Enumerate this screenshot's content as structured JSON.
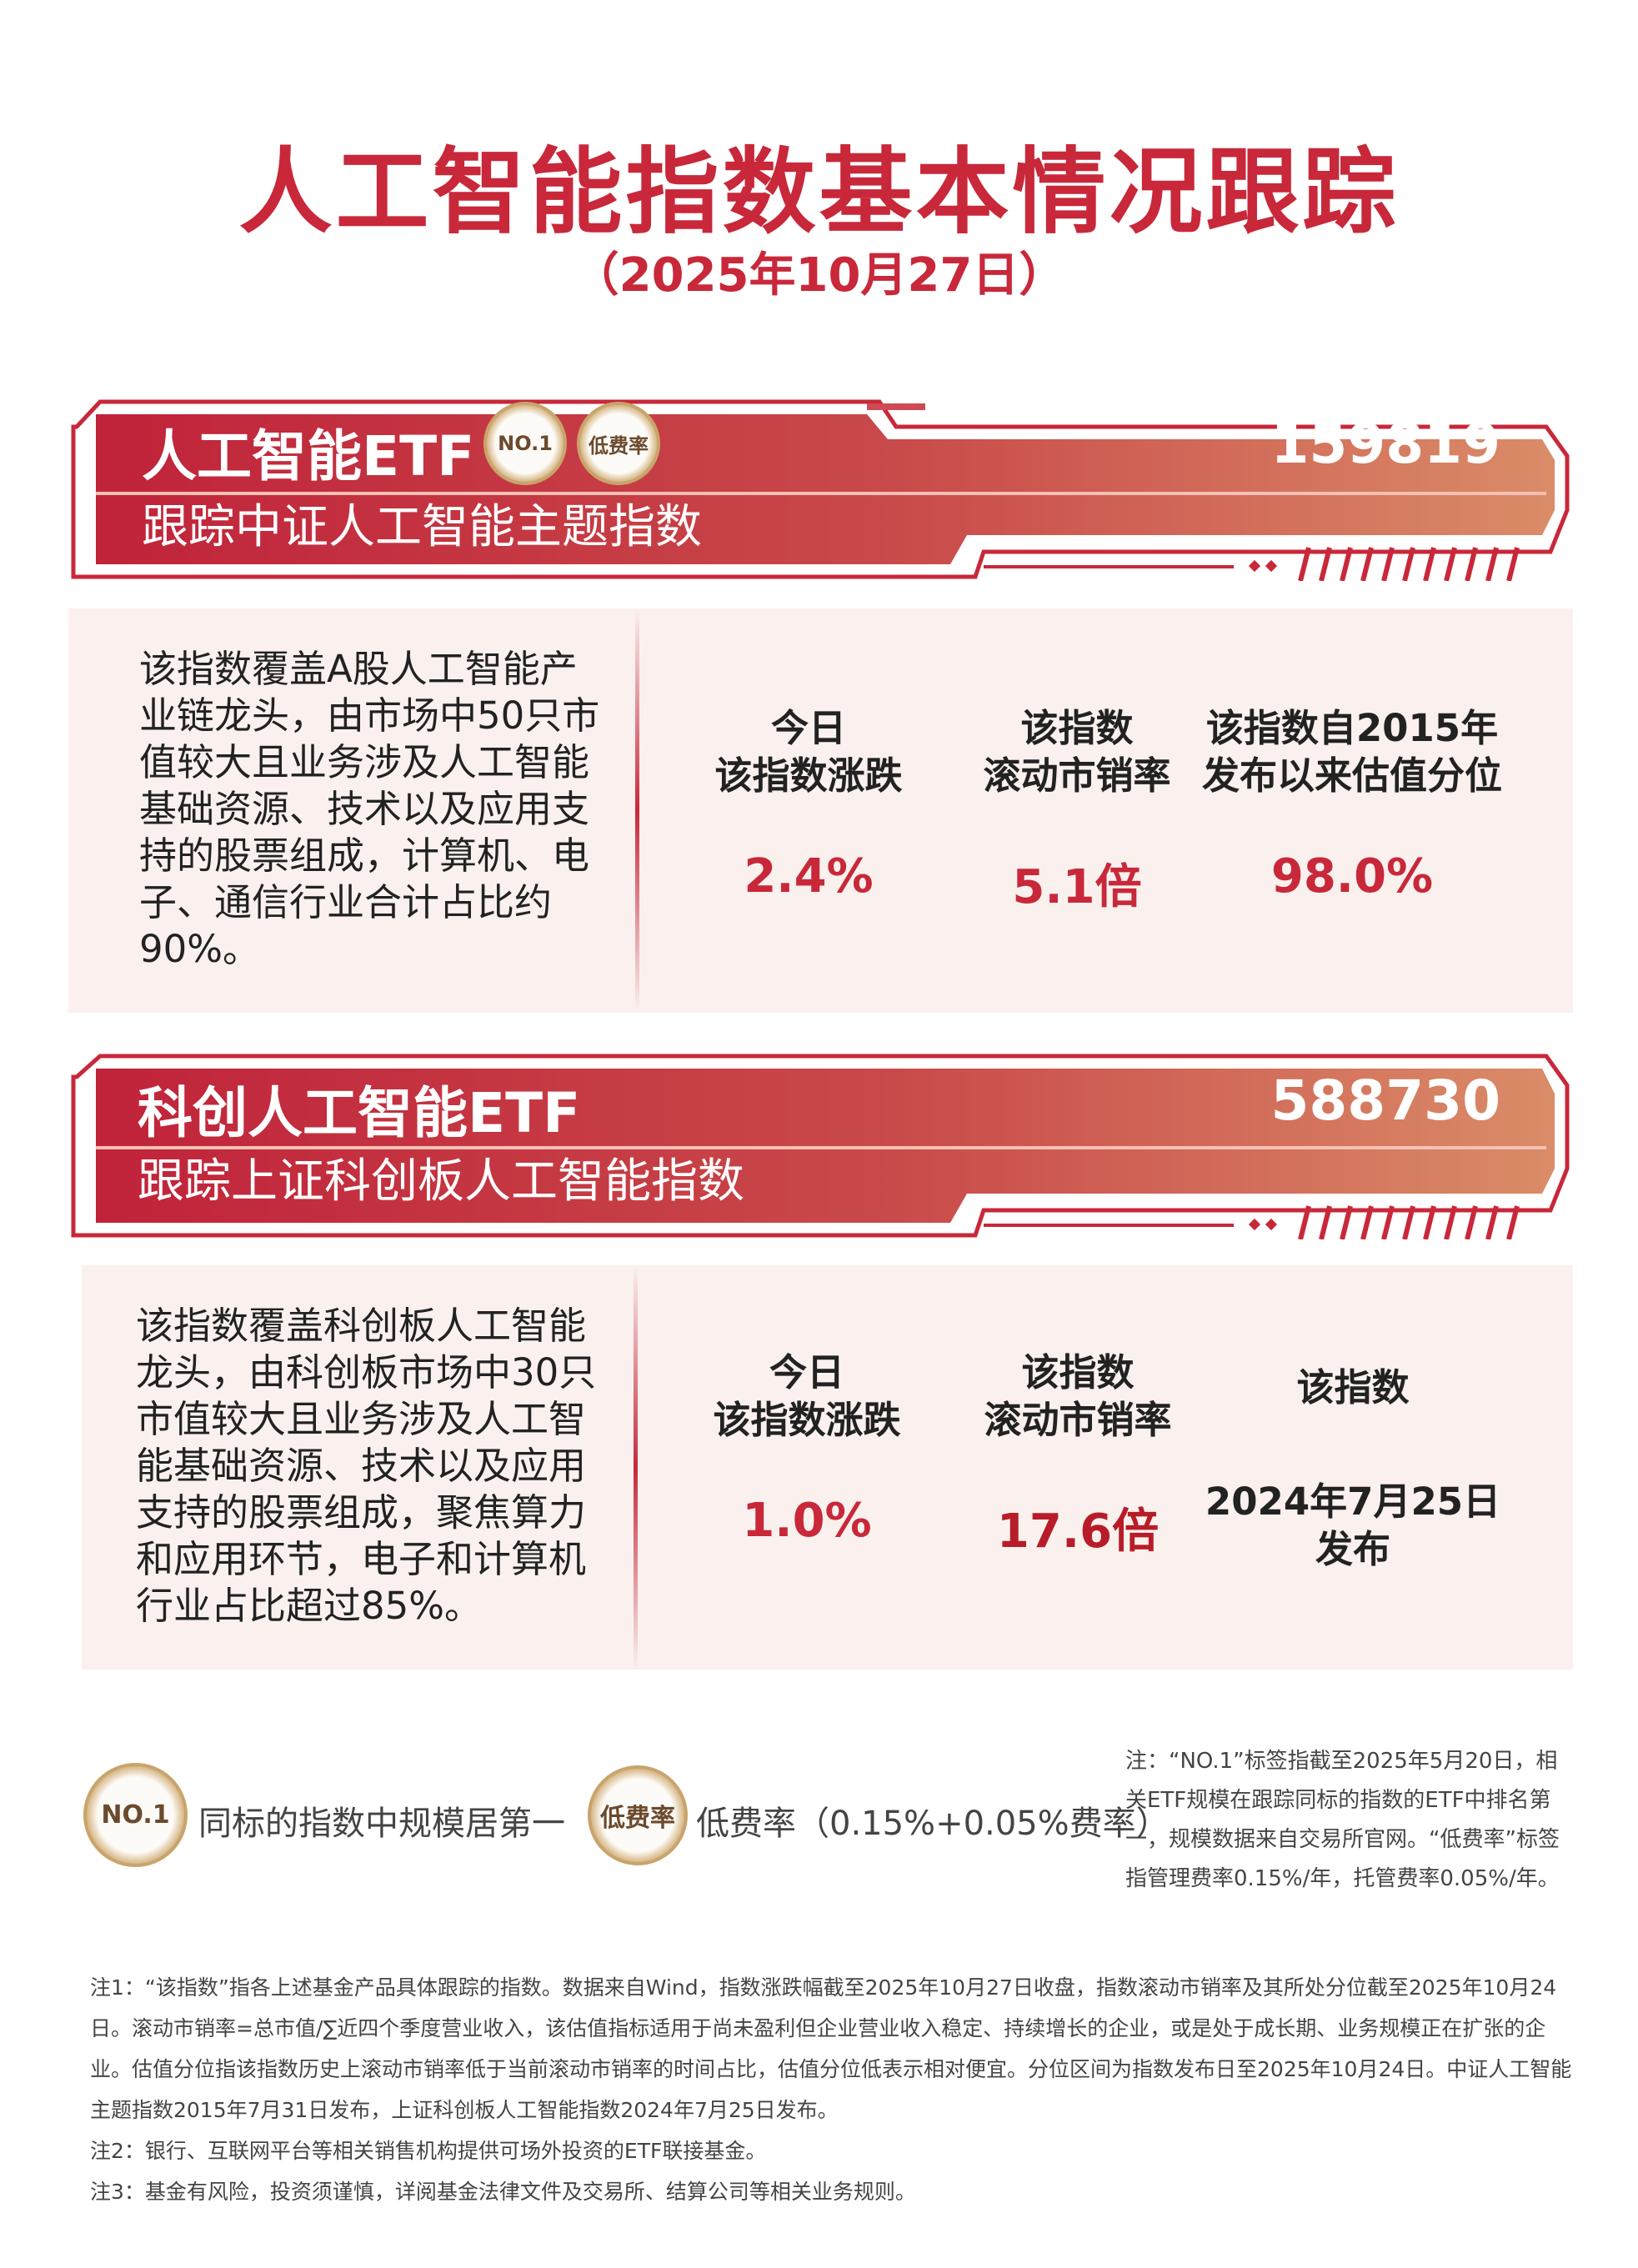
{
  "title": "人工智能指数基本情况跟踪",
  "subtitle": "（2025年10月27日）",
  "colors": {
    "brand_red": "#c8283a",
    "banner_end": "#d98b68",
    "card_bg": "#faf1ee"
  },
  "funds": [
    {
      "name": "人工智能ETF",
      "code": "159819",
      "tracking": "跟踪中证人工智能主题指数",
      "badges": [
        "NO.1",
        "低费率"
      ],
      "description": "该指数覆盖A股人工智能产业链龙头，由市场中50只市值较大且业务涉及人工智能基础资源、技术以及应用支持的股票组成，计算机、电子、通信行业合计占比约90%。",
      "metrics": [
        {
          "label1": "今日",
          "label2": "该指数涨跌",
          "value": "2.4%"
        },
        {
          "label1": "该指数",
          "label2": "滚动市销率",
          "value": "5.1倍"
        },
        {
          "label1": "该指数自2015年",
          "label2": "发布以来估值分位",
          "value": "98.0%"
        }
      ]
    },
    {
      "name": "科创人工智能ETF",
      "code": "588730",
      "tracking": "跟踪上证科创板人工智能指数",
      "description": "该指数覆盖科创板人工智能龙头，由科创板市场中30只市值较大且业务涉及人工智能基础资源、技术以及应用支持的股票组成，聚焦算力和应用环节，电子和计算机行业占比超过85%。",
      "metrics": [
        {
          "label1": "今日",
          "label2": "该指数涨跌",
          "value": "1.0%"
        },
        {
          "label1": "该指数",
          "label2": "滚动市销率",
          "value": "17.6倍"
        },
        {
          "label1": "该指数",
          "label2": "",
          "value": "2024年7月25日",
          "value2": "发布"
        }
      ]
    }
  ],
  "legend": {
    "no1_badge": "NO.1",
    "no1_text": "同标的指数中规模居第一",
    "fee_badge": "低费率",
    "fee_text": "低费率（0.15%+0.05%费率）",
    "side_note": "注：“NO.1”标签指截至2025年5月20日，相关ETF规模在跟踪同标的指数的ETF中排名第一，规模数据来自交易所官网。“低费率”标签指管理费率0.15%/年，托管费率0.05%/年。"
  },
  "notes": [
    "注1：“该指数”指各上述基金产品具体跟踪的指数。数据来自Wind，指数涨跌幅截至2025年10月27日收盘，指数滚动市销率及其所处分位截至2025年10月24日。滚动市销率=总市值/∑近四个季度营业收入，该估值指标适用于尚未盈利但企业营业收入稳定、持续增长的企业，或是处于成长期、业务规模正在扩张的企业。估值分位指该指数历史上滚动市销率低于当前滚动市销率的时间占比，估值分位低表示相对便宜。分位区间为指数发布日至2025年10月24日。中证人工智能主题指数2015年7月31日发布，上证科创板人工智能指数2024年7月25日发布。",
    "注2：银行、互联网平台等相关销售机构提供可场外投资的ETF联接基金。",
    "注3：基金有风险，投资须谨慎，详阅基金法律文件及交易所、结算公司等相关业务规则。"
  ]
}
